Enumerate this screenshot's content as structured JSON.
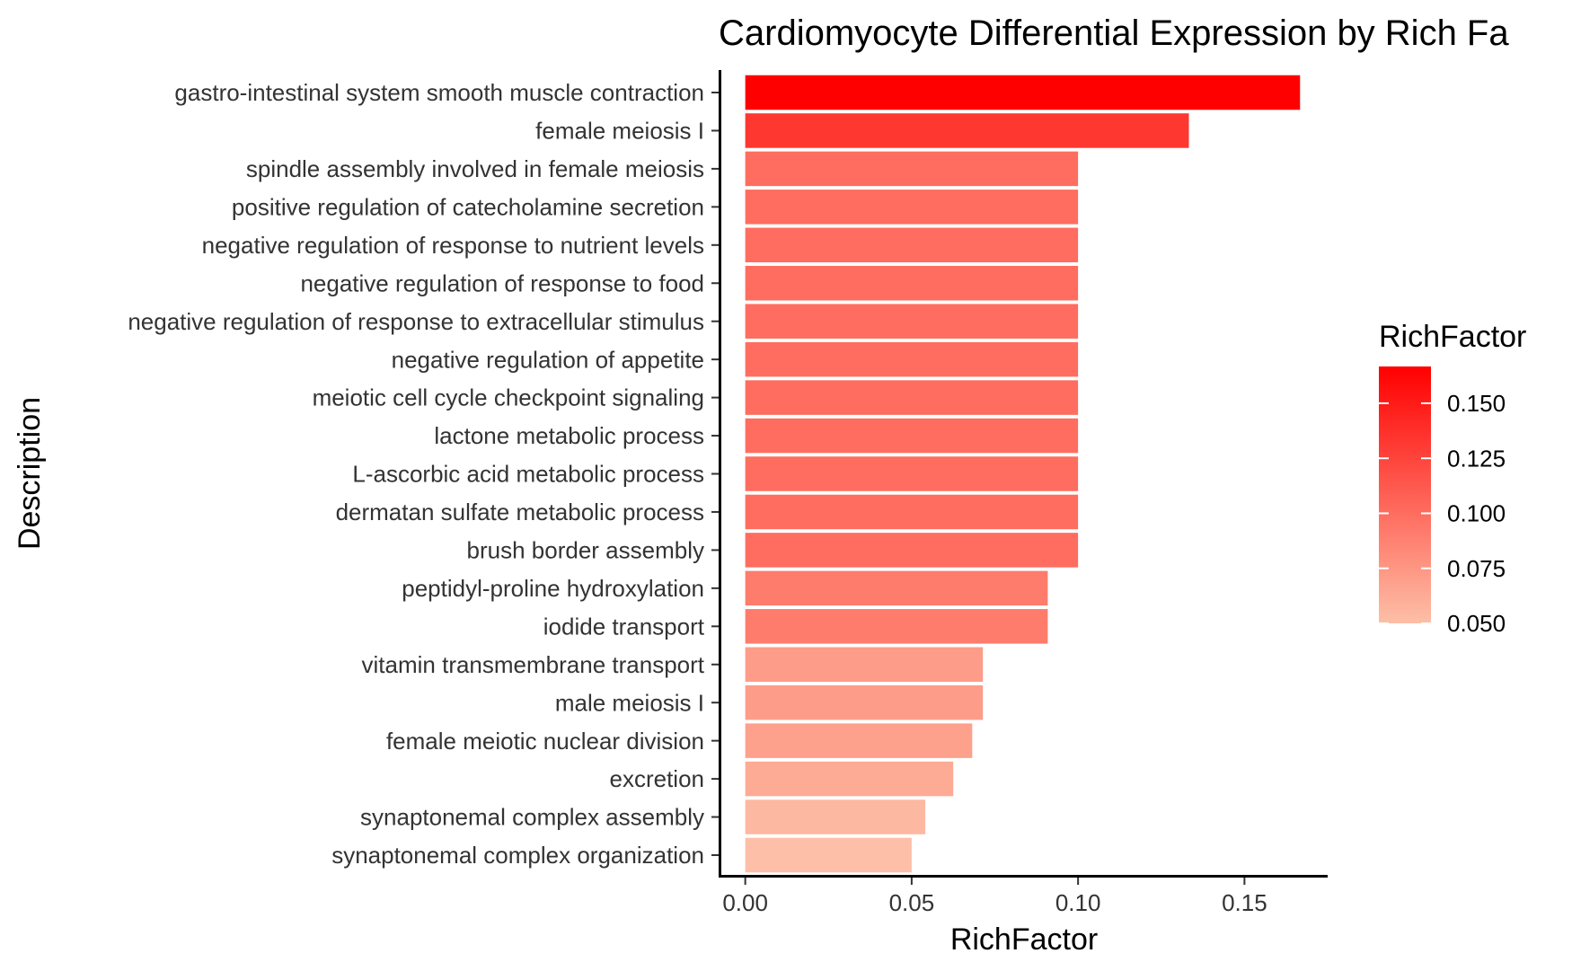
{
  "chart_data": {
    "type": "bar",
    "orientation": "horizontal",
    "title": "Cardiomyocyte Differential Expression by Rich Fa",
    "xlabel": "RichFactor",
    "ylabel": "Description",
    "xlim": [
      -0.008,
      0.175
    ],
    "xticks": [
      "0.00",
      "0.05",
      "0.10",
      "0.15"
    ],
    "xtick_values": [
      0,
      0.05,
      0.1,
      0.15
    ],
    "categories": [
      "gastro-intestinal system smooth muscle contraction",
      "female meiosis I",
      "spindle assembly involved in female meiosis",
      "positive regulation of catecholamine secretion",
      "negative regulation of response to nutrient levels",
      "negative regulation of response to food",
      "negative regulation of response to extracellular stimulus",
      "negative regulation of appetite",
      "meiotic cell cycle checkpoint signaling",
      "lactone metabolic process",
      "L-ascorbic acid metabolic process",
      "dermatan sulfate metabolic process",
      "brush border assembly",
      "peptidyl-proline hydroxylation",
      "iodide transport",
      "vitamin transmembrane transport",
      "male meiosis I",
      "female meiotic nuclear division",
      "excretion",
      "synaptonemal complex assembly",
      "synaptonemal complex organization"
    ],
    "values": [
      0.1667,
      0.1333,
      0.1,
      0.1,
      0.1,
      0.1,
      0.1,
      0.1,
      0.1,
      0.1,
      0.1,
      0.1,
      0.1,
      0.0909,
      0.0909,
      0.0714,
      0.0714,
      0.0682,
      0.0625,
      0.0541,
      0.05
    ],
    "grid": false,
    "legend": {
      "title": "RichFactor",
      "placement": "right",
      "ticks": [
        "0.150",
        "0.125",
        "0.100",
        "0.075",
        "0.050"
      ],
      "tick_values": [
        0.15,
        0.125,
        0.1,
        0.075,
        0.05
      ],
      "range": [
        0.05,
        0.1667
      ],
      "color_low": "#FDBFA7",
      "color_high": "#FF0000"
    }
  }
}
